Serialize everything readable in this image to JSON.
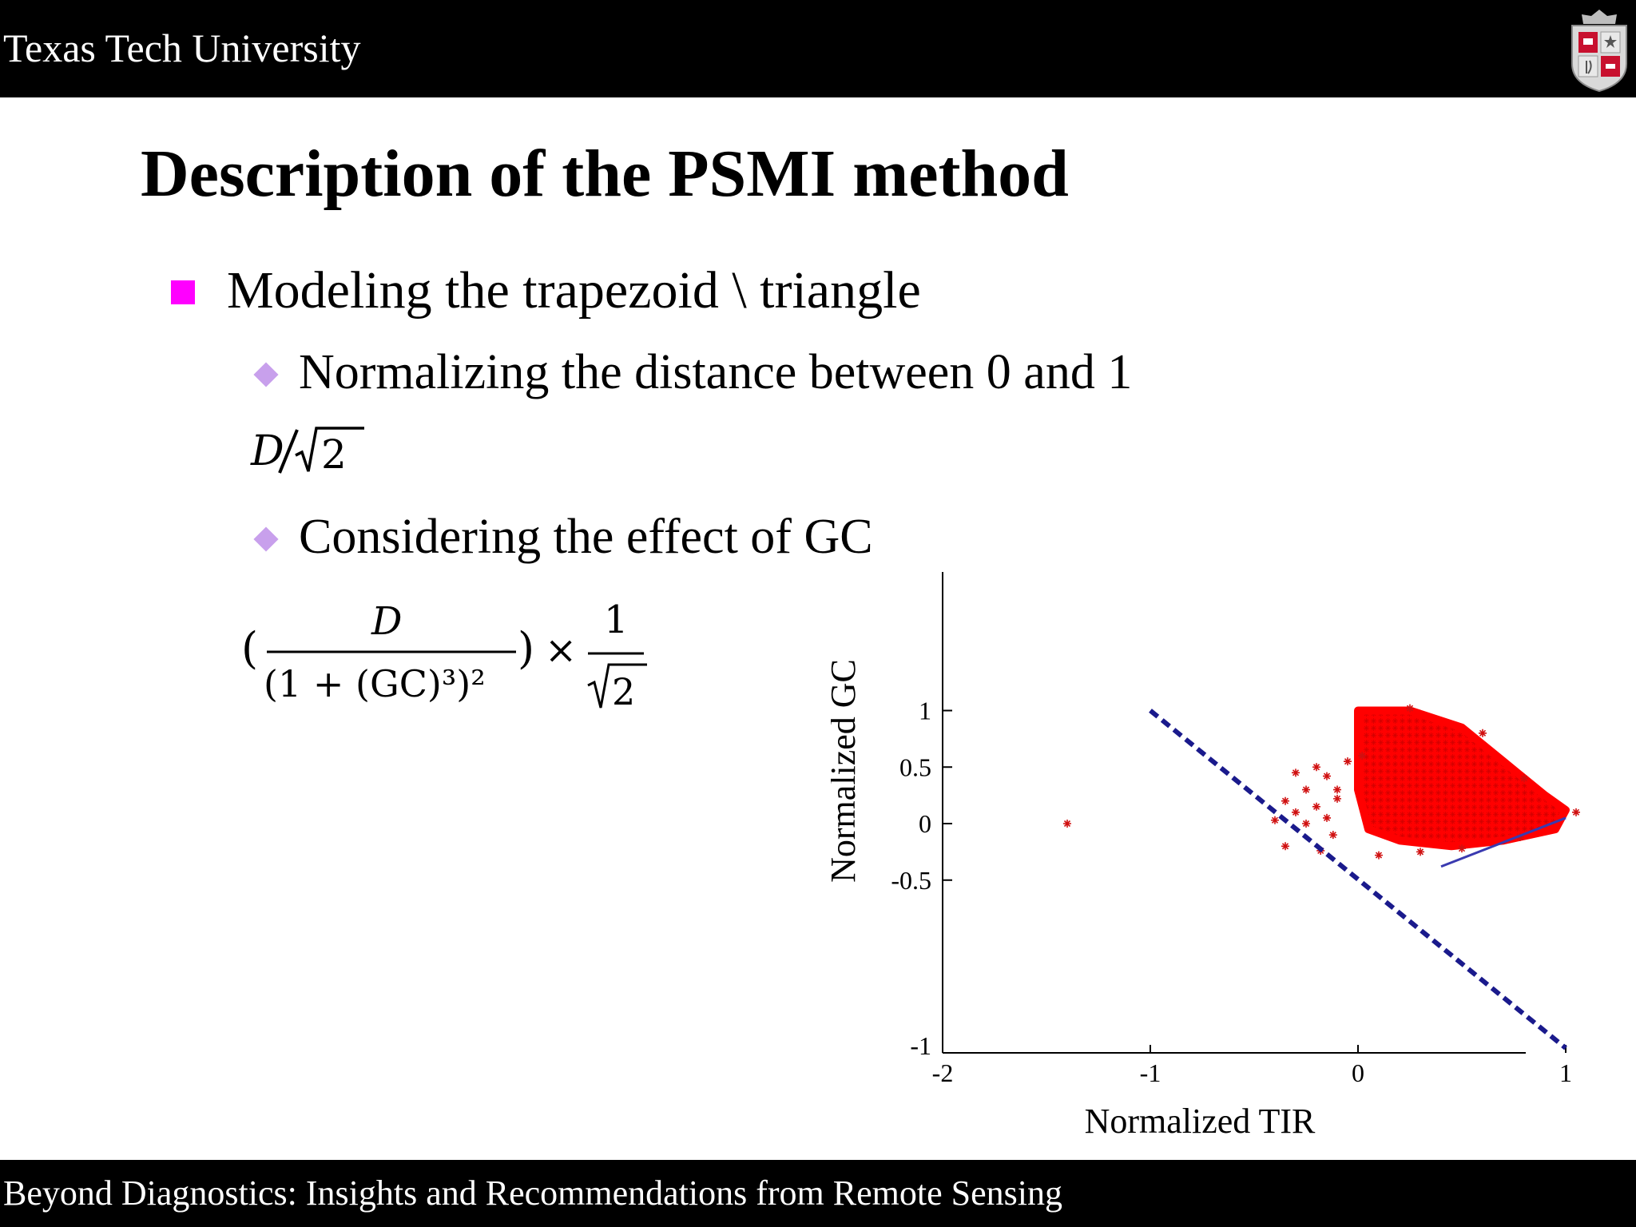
{
  "header": {
    "organization": "Texas Tech University",
    "logo_icon": "university-seal-icon"
  },
  "slide": {
    "title": "Description of the PSMI method",
    "bullets": {
      "level1": "Modeling the trapezoid \\ triangle",
      "level2_a": "Normalizing the distance between 0 and 1",
      "level2_b": "Considering the effect of  GC"
    },
    "formulas": {
      "f1": {
        "numerator": "D",
        "sqrt_arg": "2"
      },
      "f2": {
        "numerator": "D",
        "denominator": "(1 + (GC)³)²",
        "times": "×",
        "one": "1",
        "sqrt_arg": "2",
        "open_paren": "(",
        "close_paren": ")"
      }
    }
  },
  "footer": {
    "text": "Beyond Diagnostics:  Insights and Recommendations from Remote Sensing"
  },
  "colors": {
    "bullet_square": "#ff00ff",
    "bullet_diamond": "#c8a0ec",
    "points": "#ff0000",
    "dry_edge": "#1a1a8c",
    "distance_line": "#3a3ab0"
  },
  "chart_data": {
    "type": "scatter",
    "xlabel": "Normalized TIR",
    "ylabel": "Normalized GC",
    "xlim": [
      -2,
      1.25
    ],
    "ylim": [
      -1,
      1.05
    ],
    "xticks": [
      -2,
      -1,
      0,
      1
    ],
    "yticks": [
      -1,
      -0.5,
      0,
      0.5,
      1
    ],
    "xtick_labels": [
      "-2",
      "-1",
      "0",
      "1"
    ],
    "ytick_labels": [
      "-1",
      "-0.5",
      "0",
      "0.5",
      "1"
    ],
    "grid": false,
    "marker": "asterisk",
    "point_cloud_polygon": [
      [
        0.0,
        1.0
      ],
      [
        0.25,
        1.0
      ],
      [
        0.5,
        0.85
      ],
      [
        0.7,
        0.55
      ],
      [
        0.9,
        0.25
      ],
      [
        1.0,
        0.12
      ],
      [
        0.95,
        -0.05
      ],
      [
        0.7,
        -0.15
      ],
      [
        0.45,
        -0.2
      ],
      [
        0.2,
        -0.15
      ],
      [
        0.05,
        -0.05
      ],
      [
        0.0,
        0.3
      ]
    ],
    "outlier_points": [
      [
        -1.4,
        0.0
      ],
      [
        -0.35,
        0.2
      ],
      [
        -0.3,
        0.1
      ],
      [
        -0.25,
        0.0
      ],
      [
        -0.2,
        0.15
      ],
      [
        -0.15,
        0.05
      ],
      [
        -0.1,
        0.22
      ],
      [
        -0.3,
        0.45
      ],
      [
        -0.2,
        0.5
      ],
      [
        -0.15,
        0.42
      ],
      [
        -0.05,
        0.55
      ],
      [
        -0.1,
        0.3
      ],
      [
        -0.35,
        -0.2
      ],
      [
        -0.18,
        -0.24
      ],
      [
        -0.4,
        0.03
      ],
      [
        -0.12,
        -0.1
      ],
      [
        0.02,
        0.6
      ],
      [
        -0.25,
        0.3
      ],
      [
        0.1,
        -0.28
      ],
      [
        0.3,
        -0.25
      ],
      [
        0.5,
        -0.22
      ],
      [
        0.78,
        -0.12
      ],
      [
        1.05,
        0.1
      ],
      [
        0.25,
        1.02
      ],
      [
        0.6,
        0.8
      ],
      [
        0.8,
        0.4
      ]
    ],
    "dry_edge_line": {
      "x": [
        -1,
        1
      ],
      "y": [
        1,
        -1
      ],
      "style": "dashed"
    },
    "distance_segment": {
      "x": [
        0.4,
        1.0
      ],
      "y": [
        -0.38,
        0.05
      ]
    }
  }
}
